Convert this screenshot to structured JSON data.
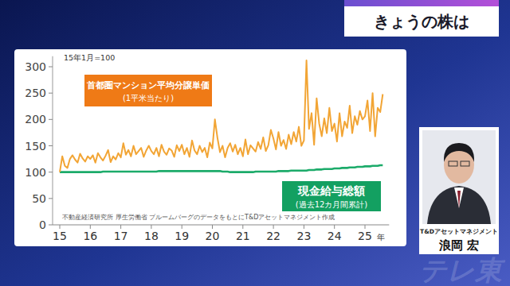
{
  "header": {
    "title": "きょうの株は"
  },
  "presenter": {
    "company": "T&Dアセットマネジメント",
    "name": "浪岡 宏"
  },
  "watermark": "テレ東",
  "chart_data": {
    "type": "line",
    "note": "15年1月=100",
    "source": "不動産経済研究所 厚生労働省 ブルームバーグのデータをもとにT&Dアセットマネジメント作成",
    "x_label": "年",
    "categories": [
      "15",
      null,
      null,
      null,
      null,
      null,
      null,
      null,
      null,
      null,
      null,
      null,
      "16",
      null,
      null,
      null,
      null,
      null,
      null,
      null,
      null,
      null,
      null,
      null,
      "17",
      null,
      null,
      null,
      null,
      null,
      null,
      null,
      null,
      null,
      null,
      null,
      "18",
      null,
      null,
      null,
      null,
      null,
      null,
      null,
      null,
      null,
      null,
      null,
      "19",
      null,
      null,
      null,
      null,
      null,
      null,
      null,
      null,
      null,
      null,
      null,
      "20",
      null,
      null,
      null,
      null,
      null,
      null,
      null,
      null,
      null,
      null,
      null,
      "21",
      null,
      null,
      null,
      null,
      null,
      null,
      null,
      null,
      null,
      null,
      null,
      "22",
      null,
      null,
      null,
      null,
      null,
      null,
      null,
      null,
      null,
      null,
      null,
      "23",
      null,
      null,
      null,
      null,
      null,
      null,
      null,
      null,
      null,
      null,
      null,
      "24",
      null,
      null,
      null,
      null,
      null,
      null,
      null,
      null,
      null,
      null,
      null,
      "25",
      null,
      null,
      null,
      null,
      null,
      null,
      null
    ],
    "series": [
      {
        "name": "首都圏マンション平均分譲単価",
        "note": "(1平米当たり)",
        "color": "#f2a535",
        "values": [
          100,
          130,
          112,
          108,
          125,
          132,
          124,
          118,
          135,
          126,
          120,
          130,
          125,
          132,
          118,
          136,
          128,
          122,
          131,
          142,
          119,
          130,
          124,
          136,
          128,
          155,
          133,
          142,
          130,
          150,
          134,
          140,
          146,
          129,
          141,
          150,
          140,
          134,
          146,
          130,
          152,
          139,
          133,
          145,
          141,
          129,
          151,
          140,
          152,
          134,
          146,
          129,
          160,
          141,
          134,
          150,
          138,
          146,
          128,
          156,
          145,
          200,
          165,
          138,
          150,
          128,
          146,
          155,
          139,
          152,
          134,
          146,
          130,
          162,
          134,
          151,
          145,
          139,
          157,
          144,
          166,
          140,
          151,
          180,
          164,
          143,
          176,
          150,
          161,
          144,
          171,
          153,
          176,
          158,
          186,
          150,
          160,
          312,
          182,
          212,
          152,
          240,
          192,
          168,
          202,
          174,
          222,
          178,
          192,
          158,
          212,
          168,
          196,
          184,
          226,
          174,
          206,
          190,
          216,
          200,
          206,
          236,
          178,
          250,
          168,
          222,
          214,
          248
        ]
      },
      {
        "name": "現金給与総額",
        "note": "(過去12カ月間累計)",
        "color": "#1cab6a",
        "values": [
          100,
          100,
          100,
          100,
          100,
          100,
          100,
          100,
          100,
          100,
          100,
          100,
          100,
          100,
          100,
          100,
          100,
          101,
          101,
          101,
          101,
          101,
          101,
          101,
          101,
          101,
          101,
          101,
          101,
          101,
          101,
          101,
          101,
          101,
          101,
          101,
          101,
          101,
          101,
          102,
          102,
          102,
          102,
          102,
          102,
          102,
          102,
          102,
          102,
          102,
          102,
          102,
          102,
          102,
          102,
          102,
          102,
          102,
          102,
          102,
          102,
          102,
          102,
          102,
          101,
          101,
          101,
          100,
          100,
          100,
          100,
          100,
          100,
          100,
          100,
          100,
          100,
          101,
          101,
          101,
          101,
          101,
          101,
          101,
          101,
          101,
          102,
          102,
          102,
          102,
          102,
          103,
          103,
          103,
          103,
          103,
          103,
          103,
          104,
          104,
          104,
          105,
          105,
          105,
          106,
          106,
          106,
          106,
          107,
          107,
          107,
          108,
          108,
          108,
          109,
          109,
          109,
          110,
          110,
          110,
          111,
          111,
          111,
          112,
          112,
          112,
          113,
          113
        ]
      }
    ],
    "ylim": [
      0,
      320
    ],
    "yticks": [
      0,
      50,
      100,
      150,
      200,
      250,
      300
    ],
    "grid": false
  }
}
